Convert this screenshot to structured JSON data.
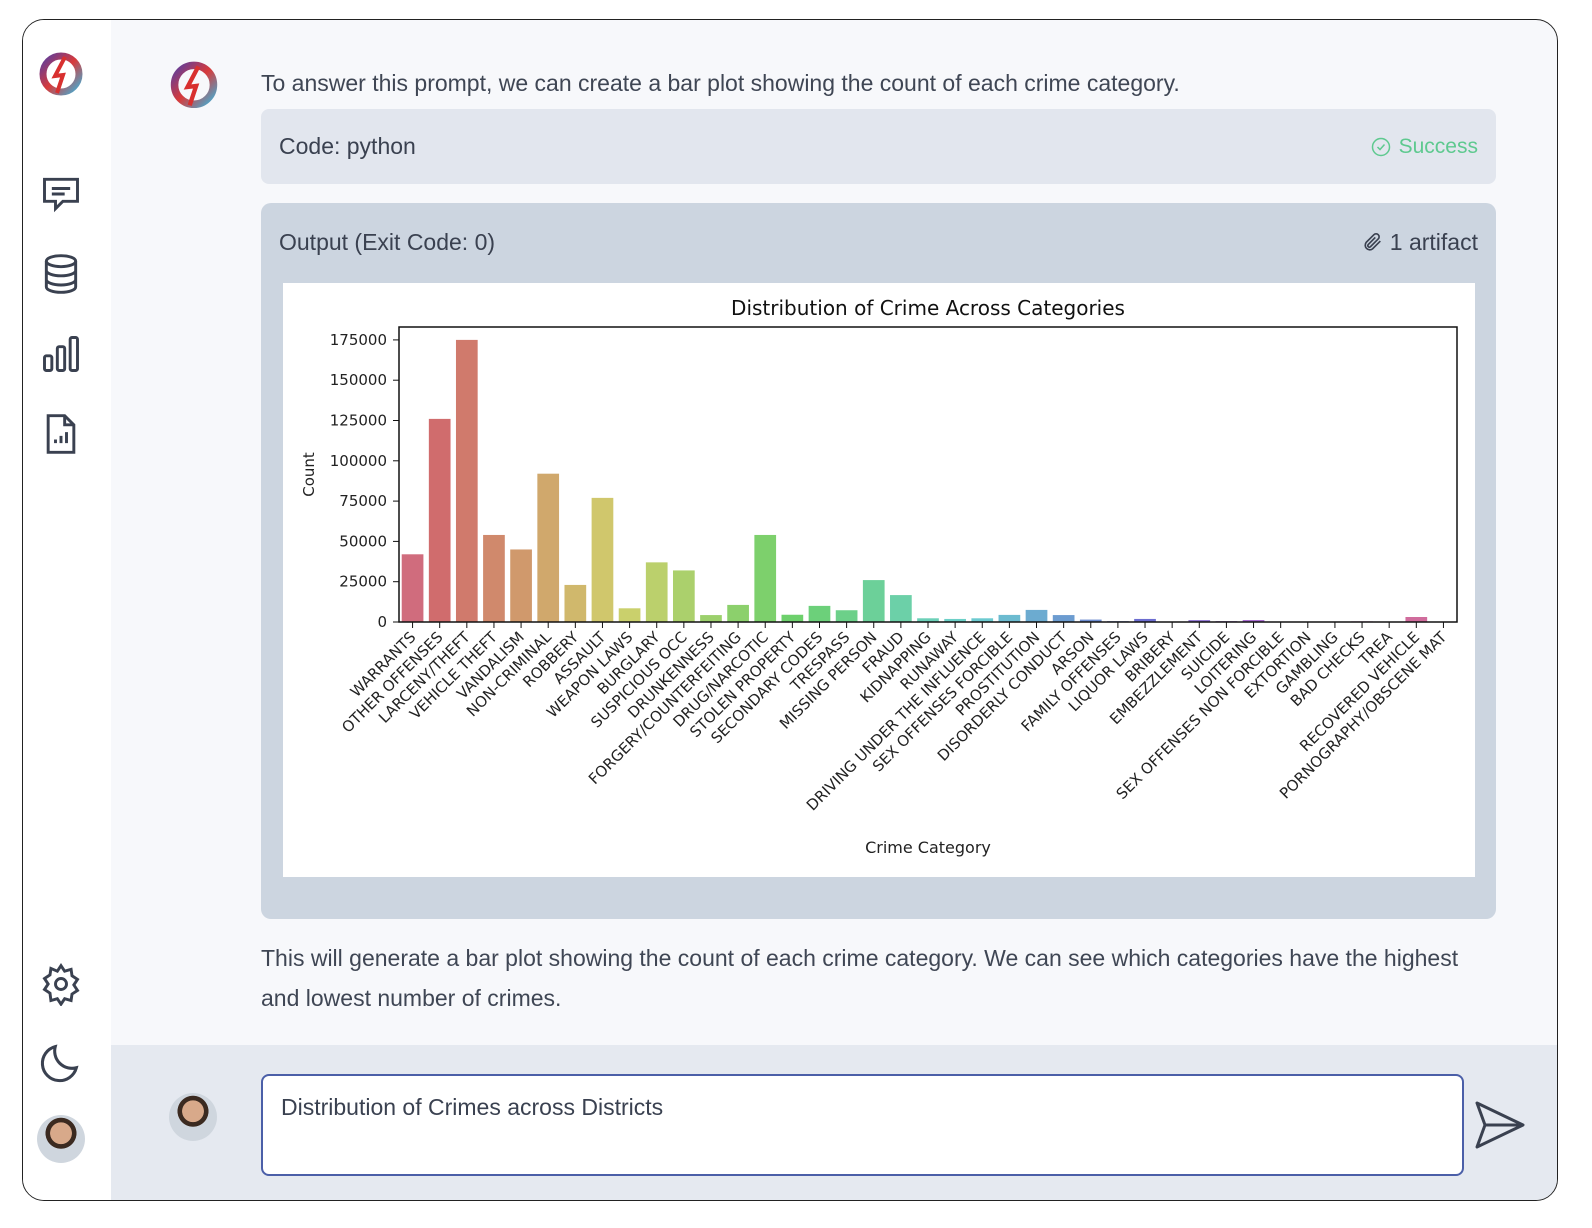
{
  "sidebar": {
    "items": [
      {
        "icon": "logo-icon"
      },
      {
        "icon": "chat-icon"
      },
      {
        "icon": "database-icon"
      },
      {
        "icon": "bar-chart-icon"
      },
      {
        "icon": "report-icon"
      }
    ],
    "bottom": [
      {
        "icon": "gear-icon"
      },
      {
        "icon": "moon-icon"
      },
      {
        "icon": "user-avatar"
      }
    ]
  },
  "message": {
    "intro": "To answer this prompt, we can create a bar plot showing the count of each crime category.",
    "code_label": "Code: python",
    "status": "Success",
    "output_label": "Output (Exit Code: 0)",
    "artifacts": "1 artifact",
    "conclusion": "This will generate a bar plot showing the count of each crime category. We can see which categories have the highest and lowest number of crimes."
  },
  "input": {
    "value": "Distribution of Crimes across Districts"
  },
  "colors": {
    "success": "#5ec98f",
    "input_border": "#4b5fa8",
    "code_bg": "#e2e6ee",
    "output_bg": "#ccd5e0"
  },
  "chart_data": {
    "type": "bar",
    "title": "Distribution of Crime Across Categories",
    "xlabel": "Crime Category",
    "ylabel": "Count",
    "ylim": [
      0,
      183000
    ],
    "yticks": [
      0,
      25000,
      50000,
      75000,
      100000,
      125000,
      150000,
      175000
    ],
    "categories": [
      "WARRANTS",
      "OTHER OFFENSES",
      "LARCENY/THEFT",
      "VEHICLE THEFT",
      "VANDALISM",
      "NON-CRIMINAL",
      "ROBBERY",
      "ASSAULT",
      "WEAPON LAWS",
      "BURGLARY",
      "SUSPICIOUS OCC",
      "DRUNKENNESS",
      "FORGERY/COUNTERFEITING",
      "DRUG/NARCOTIC",
      "STOLEN PROPERTY",
      "SECONDARY CODES",
      "TRESPASS",
      "MISSING PERSON",
      "FRAUD",
      "KIDNAPPING",
      "RUNAWAY",
      "DRIVING UNDER THE INFLUENCE",
      "SEX OFFENSES FORCIBLE",
      "PROSTITUTION",
      "DISORDERLY CONDUCT",
      "ARSON",
      "FAMILY OFFENSES",
      "LIQUOR LAWS",
      "BRIBERY",
      "EMBEZZLEMENT",
      "SUICIDE",
      "LOITERING",
      "SEX OFFENSES NON FORCIBLE",
      "EXTORTION",
      "GAMBLING",
      "BAD CHECKS",
      "TREA",
      "RECOVERED VEHICLE",
      "PORNOGRAPHY/OBSCENE MAT"
    ],
    "values": [
      42000,
      126000,
      175000,
      54000,
      45000,
      92000,
      23000,
      77000,
      8500,
      37000,
      32000,
      4300,
      10600,
      54000,
      4500,
      10000,
      7300,
      26000,
      16700,
      2300,
      1900,
      2300,
      4400,
      7500,
      4300,
      1500,
      490,
      1900,
      290,
      1170,
      510,
      1230,
      150,
      260,
      150,
      400,
      6,
      3100,
      22
    ],
    "grid": false,
    "legend": "none"
  }
}
